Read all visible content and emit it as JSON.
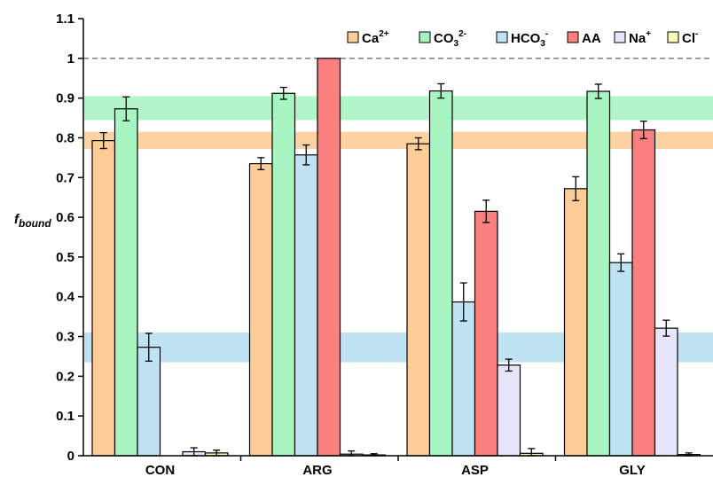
{
  "chart_data": {
    "type": "bar",
    "ylabel_main": "f",
    "ylabel_sub": "bound",
    "xlabel": "",
    "ylim": [
      0,
      1.1
    ],
    "yticks": [
      "0",
      "0.1",
      "0.2",
      "0.3",
      "0.4",
      "0.5",
      "0.6",
      "0.7",
      "0.8",
      "0.9",
      "1",
      "1.1"
    ],
    "categories": [
      "CON",
      "ARG",
      "ASP",
      "GLY"
    ],
    "legend_position": "top-right",
    "reference_line": 1.0,
    "bands": [
      {
        "ymin": 0.845,
        "ymax": 0.905,
        "color": "#b2f5c8"
      },
      {
        "ymin": 0.772,
        "ymax": 0.815,
        "color": "#fdd3a3"
      },
      {
        "ymin": 0.235,
        "ymax": 0.31,
        "color": "#bfe3f2"
      }
    ],
    "series": [
      {
        "name": "Ca",
        "sup": "2+",
        "sub": "",
        "color": "#fdcc97",
        "values": [
          0.793,
          0.735,
          0.785,
          0.672
        ],
        "errors": [
          0.02,
          0.015,
          0.015,
          0.03
        ]
      },
      {
        "name": "CO",
        "sup": "2-",
        "sub": "3",
        "color": "#a7f5c0",
        "values": [
          0.873,
          0.912,
          0.918,
          0.917
        ],
        "errors": [
          0.03,
          0.015,
          0.018,
          0.018
        ]
      },
      {
        "name": "HCO",
        "sup": "-",
        "sub": "3",
        "color": "#bfe3f2",
        "values": [
          0.273,
          0.757,
          0.387,
          0.486
        ],
        "errors": [
          0.035,
          0.025,
          0.048,
          0.022
        ]
      },
      {
        "name": "AA",
        "sup": "",
        "sub": "",
        "color": "#fa7f7f",
        "values": [
          null,
          1.0,
          0.615,
          0.82
        ],
        "errors": [
          null,
          0,
          0.028,
          0.022
        ]
      },
      {
        "name": "Na",
        "sup": "+",
        "sub": "",
        "color": "#e6e6fa",
        "values": [
          0.01,
          0.004,
          0.228,
          0.321
        ],
        "errors": [
          0.01,
          0.008,
          0.015,
          0.02
        ]
      },
      {
        "name": "Cl",
        "sup": "-",
        "sub": "",
        "color": "#fafabd",
        "values": [
          0.007,
          0.002,
          0.006,
          0.003
        ],
        "errors": [
          0.007,
          0.003,
          0.012,
          0.004
        ]
      }
    ]
  }
}
